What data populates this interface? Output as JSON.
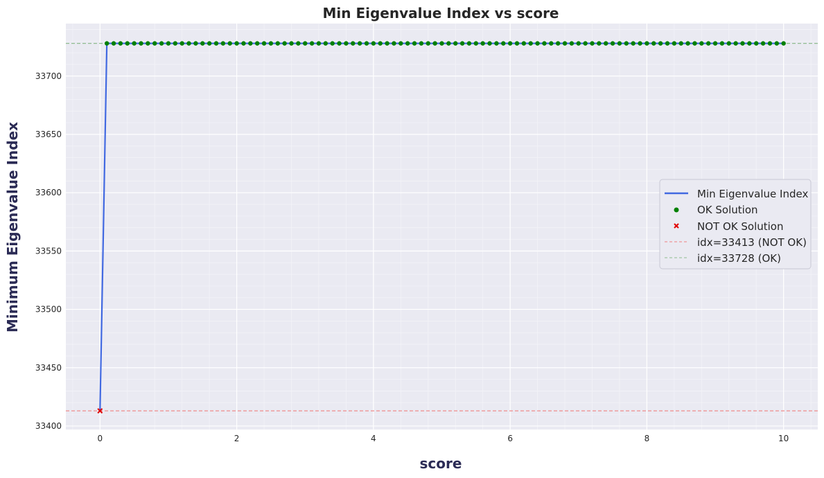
{
  "chart_data": {
    "type": "line",
    "title": "Min Eigenvalue Index vs score",
    "xlabel": "score",
    "ylabel": "Minimum Eigenvalue Index",
    "xlim": [
      -0.5,
      10.5
    ],
    "ylim": [
      33397,
      33745
    ],
    "xticks": [
      0,
      2,
      4,
      6,
      8,
      10
    ],
    "yticks": [
      33400,
      33450,
      33500,
      33550,
      33600,
      33650,
      33700
    ],
    "grid": true,
    "legend_position": "center-right",
    "line_series": {
      "name": "Min Eigenvalue Index",
      "color": "#4169e1",
      "x_start": 0,
      "x_end": 10,
      "x_step": 0.1,
      "first_value": 33413,
      "rest_value": 33728
    },
    "ok_points": {
      "name": "OK Solution",
      "color": "#008000",
      "x_start": 0.1,
      "x_end": 10,
      "x_step": 0.1,
      "y": 33728
    },
    "not_ok_points": {
      "name": "NOT OK Solution",
      "color": "#e00000",
      "points": [
        {
          "x": 0,
          "y": 33413
        }
      ]
    },
    "reference_lines": [
      {
        "name": "idx=33413 (NOT OK)",
        "y": 33413,
        "color": "#f08080",
        "style": "dashed"
      },
      {
        "name": "idx=33728 (OK)",
        "y": 33728,
        "color": "#8fbc8f",
        "style": "dashed"
      }
    ],
    "colors": {
      "plot_background": "#eaeaf2",
      "grid_major": "#ffffff",
      "grid_minor": "#f3f3f8",
      "legend_background": "#eaeaf2"
    }
  }
}
